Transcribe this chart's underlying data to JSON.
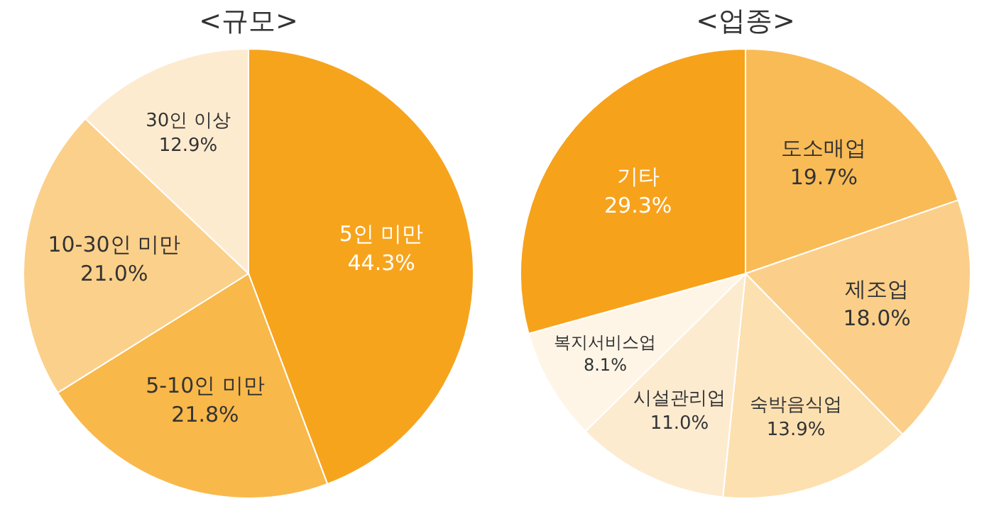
{
  "chart_data": [
    {
      "type": "pie",
      "title": "<규모>",
      "categories": [
        "5인 미만",
        "5-10인 미만",
        "10-30인 미만",
        "30인 이상"
      ],
      "values": [
        44.3,
        21.8,
        21.0,
        12.9
      ],
      "value_labels": [
        "44.3%",
        "21.8%",
        "21.0%",
        "12.9%"
      ],
      "colors": [
        "#f7a41d",
        "#f9b84a",
        "#fbd08a",
        "#fdebd0"
      ],
      "legend": false
    },
    {
      "type": "pie",
      "title": "<업종>",
      "categories": [
        "도소매업",
        "제조업",
        "숙박음식업",
        "시설관리업",
        "복지서비스업",
        "기타"
      ],
      "values": [
        19.7,
        18.0,
        13.9,
        11.0,
        8.1,
        29.3
      ],
      "value_labels": [
        "19.7%",
        "18.0%",
        "13.9%",
        "11.0%",
        "8.1%",
        "29.3%"
      ],
      "colors": [
        "#f9bb55",
        "#fbcf8a",
        "#fde0b0",
        "#fdebd0",
        "#fef5e7",
        "#f7a21b"
      ],
      "legend": false
    }
  ]
}
